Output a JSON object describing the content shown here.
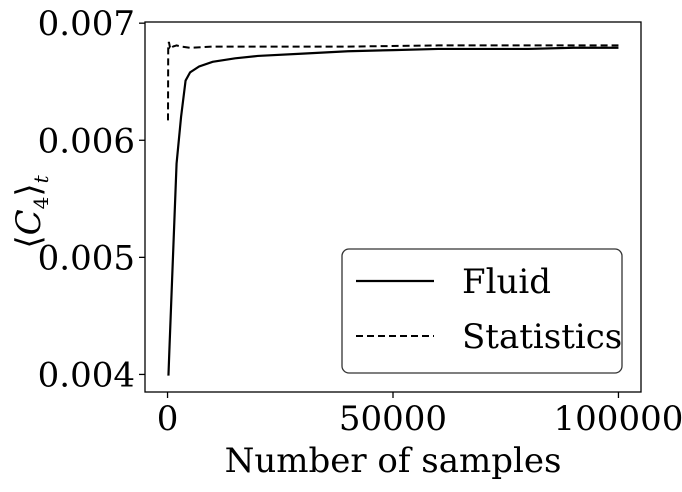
{
  "chart_data": {
    "type": "line",
    "xlabel": "Number of samples",
    "ylabel_main": "C",
    "ylabel_sub": "4",
    "ylabel_outer": "t",
    "xlim": [
      -5000,
      105000
    ],
    "ylim": [
      0.00385,
      0.00701
    ],
    "xticks": [
      0,
      50000,
      100000
    ],
    "xtick_labels": [
      "0",
      "50000",
      "100000"
    ],
    "yticks": [
      0.004,
      0.005,
      0.006,
      0.007
    ],
    "ytick_labels": [
      "0.004",
      "0.005",
      "0.006",
      "0.007"
    ],
    "grid": false,
    "legend_position": "lower-right",
    "series": [
      {
        "name": "Fluid",
        "style": "solid",
        "color": "#000000",
        "x": [
          200,
          400,
          700,
          1000,
          1500,
          2000,
          3000,
          4000,
          5000,
          7000,
          10000,
          15000,
          20000,
          30000,
          40000,
          50000,
          60000,
          70000,
          80000,
          90000,
          100000
        ],
        "y": [
          0.00399,
          0.0042,
          0.0045,
          0.0048,
          0.0053,
          0.0058,
          0.0062,
          0.00651,
          0.00658,
          0.00663,
          0.00667,
          0.0067,
          0.00672,
          0.00674,
          0.00676,
          0.00677,
          0.00678,
          0.00678,
          0.00678,
          0.00679,
          0.00679
        ]
      },
      {
        "name": "Statistics",
        "style": "dashed",
        "color": "#000000",
        "x": [
          100,
          150,
          300,
          500,
          800,
          1200,
          2000,
          3000,
          5000,
          10000,
          20000,
          40000,
          60000,
          80000,
          100000
        ],
        "y": [
          0.00617,
          0.0068,
          0.00684,
          0.0068,
          0.00682,
          0.0068,
          0.00681,
          0.0068,
          0.00679,
          0.0068,
          0.0068,
          0.0068,
          0.00681,
          0.00681,
          0.00681
        ]
      }
    ]
  }
}
